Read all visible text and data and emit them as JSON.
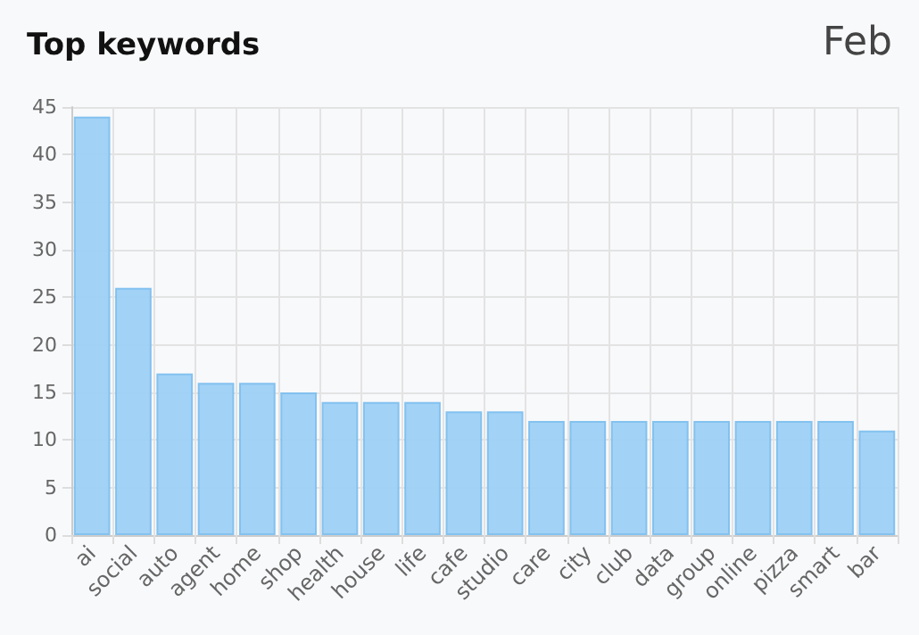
{
  "chart_data": {
    "type": "bar",
    "title": "Top keywords",
    "subtitle": "Feb",
    "categories": [
      "ai",
      "social",
      "auto",
      "agent",
      "home",
      "shop",
      "health",
      "house",
      "life",
      "cafe",
      "studio",
      "care",
      "city",
      "club",
      "data",
      "group",
      "online",
      "pizza",
      "smart",
      "bar"
    ],
    "values": [
      44,
      26,
      17,
      16,
      16,
      15,
      14,
      14,
      14,
      13,
      13,
      12,
      12,
      12,
      12,
      12,
      12,
      12,
      12,
      11
    ],
    "color": "#9dd0f5",
    "ylim": [
      0,
      45
    ],
    "yticks": [
      0,
      5,
      10,
      15,
      20,
      25,
      30,
      35,
      40,
      45
    ],
    "grid": true
  }
}
